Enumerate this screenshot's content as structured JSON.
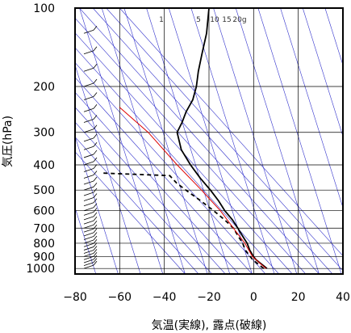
{
  "chart_data": {
    "type": "skew-t",
    "xlabel": "気温(実線), 露点(破線)",
    "ylabel": "気圧(hPa)",
    "xlim": [
      -80,
      40
    ],
    "ylim": [
      1050,
      100
    ],
    "y_scale": "log",
    "x_ticks": [
      "−80",
      "−60",
      "−40",
      "−20",
      "0",
      "20",
      "40"
    ],
    "x_tick_values": [
      -80,
      -60,
      -40,
      -20,
      0,
      20,
      40
    ],
    "y_ticks": [
      "100",
      "200",
      "300",
      "400",
      "500",
      "600",
      "700",
      "800",
      "900",
      "1000"
    ],
    "y_tick_values": [
      100,
      200,
      300,
      400,
      500,
      600,
      700,
      800,
      900,
      1000
    ],
    "mixing_ratio_labels": [
      "1",
      "5",
      "10",
      "15",
      "20g"
    ],
    "grid": true,
    "colors": {
      "temperature": "#000000",
      "dewpoint": "#000000",
      "parcel": "#dd0000",
      "adiabats": "#3333cc",
      "grid": "#000000"
    },
    "series": [
      {
        "role": "temperature",
        "style": "solid",
        "points": [
          [
            1000,
            6
          ],
          [
            975,
            4
          ],
          [
            950,
            2
          ],
          [
            925,
            0
          ],
          [
            900,
            -1.5
          ],
          [
            850,
            -4
          ],
          [
            800,
            -6
          ],
          [
            750,
            -9
          ],
          [
            700,
            -12
          ],
          [
            650,
            -15.5
          ],
          [
            600,
            -20
          ],
          [
            550,
            -24
          ],
          [
            500,
            -29
          ],
          [
            450,
            -35
          ],
          [
            400,
            -41
          ],
          [
            350,
            -47
          ],
          [
            300,
            -51
          ],
          [
            275,
            -50
          ],
          [
            250,
            -49.5
          ],
          [
            225,
            -48
          ],
          [
            200,
            -48
          ],
          [
            175,
            -49
          ],
          [
            150,
            -49.5
          ],
          [
            125,
            -50
          ],
          [
            100,
            -52
          ]
        ]
      },
      {
        "role": "dewpoint",
        "style": "dashed",
        "points": [
          [
            1000,
            4.5
          ],
          [
            975,
            2.5
          ],
          [
            950,
            0.5
          ],
          [
            925,
            -1.5
          ],
          [
            900,
            -3
          ],
          [
            850,
            -6
          ],
          [
            800,
            -8
          ],
          [
            750,
            -11
          ],
          [
            700,
            -14
          ],
          [
            650,
            -19
          ],
          [
            600,
            -25
          ],
          [
            550,
            -32
          ],
          [
            500,
            -40
          ],
          [
            470,
            -45
          ],
          [
            440,
            -49
          ],
          [
            430,
            -80
          ]
        ]
      },
      {
        "role": "parcel",
        "style": "solid",
        "points": [
          [
            1000,
            5.5
          ],
          [
            900,
            -2
          ],
          [
            800,
            -7
          ],
          [
            700,
            -14
          ],
          [
            600,
            -22
          ],
          [
            500,
            -33
          ],
          [
            400,
            -47
          ],
          [
            300,
            -64
          ],
          [
            240,
            -80
          ]
        ]
      }
    ]
  }
}
